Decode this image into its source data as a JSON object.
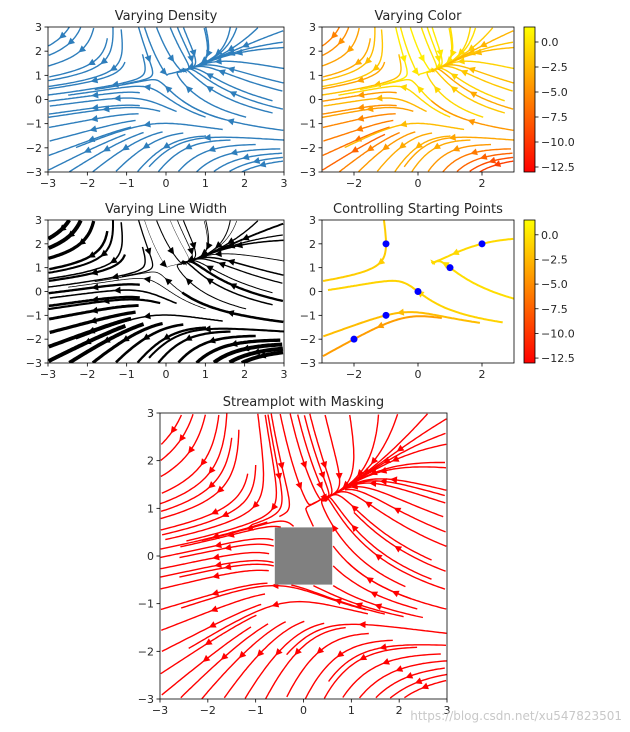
{
  "watermark": "https://blog.csdn.net/xu547823501",
  "figure": {
    "background": "#ffffff"
  },
  "chart_data": [
    {
      "type": "streamplot",
      "title": "Varying Density",
      "x_ticks": [
        "−3",
        "−2",
        "−1",
        "0",
        "1",
        "2",
        "3"
      ],
      "y_ticks": [
        "3",
        "2",
        "1",
        "0",
        "−1",
        "−2",
        "−3"
      ],
      "xlim": [
        -3,
        3
      ],
      "ylim": [
        -3,
        3
      ],
      "color": "#2e7ebc",
      "density": [
        0.5,
        1
      ],
      "colorbar": null,
      "start_points": [],
      "mask": null
    },
    {
      "type": "streamplot",
      "title": "Varying Color",
      "x_ticks": [
        "−2",
        "0",
        "2"
      ],
      "y_ticks": [
        "3",
        "2",
        "1",
        "0",
        "−1",
        "−2",
        "−3"
      ],
      "xlim": [
        -3,
        3
      ],
      "ylim": [
        -3,
        3
      ],
      "colormap": "autumn",
      "colorbar": {
        "ticks": [
          "0.0",
          "−2.5",
          "−5.0",
          "−7.5",
          "−10.0",
          "−12.5"
        ],
        "range": [
          -13,
          1.5
        ]
      },
      "start_points": [],
      "mask": null
    },
    {
      "type": "streamplot",
      "title": "Varying Line Width",
      "x_ticks": [
        "−3",
        "−2",
        "−1",
        "0",
        "1",
        "2",
        "3"
      ],
      "y_ticks": [
        "3",
        "2",
        "1",
        "0",
        "−1",
        "−2",
        "−3"
      ],
      "xlim": [
        -3,
        3
      ],
      "ylim": [
        -3,
        3
      ],
      "color": "#000000",
      "linewidth_varies_with": "speed",
      "colorbar": null,
      "start_points": [],
      "mask": null
    },
    {
      "type": "streamplot",
      "title": "Controlling Starting Points",
      "x_ticks": [
        "−2",
        "0",
        "2"
      ],
      "y_ticks": [
        "3",
        "2",
        "1",
        "0",
        "−1",
        "−2",
        "−3"
      ],
      "xlim": [
        -3,
        3
      ],
      "ylim": [
        -3,
        3
      ],
      "colormap": "autumn",
      "colorbar": {
        "ticks": [
          "0.0",
          "−2.5",
          "−5.0",
          "−7.5",
          "−10.0",
          "−12.5"
        ],
        "range": [
          -13,
          1.5
        ]
      },
      "start_points": [
        [
          -2,
          -2
        ],
        [
          -1,
          -1
        ],
        [
          0,
          0
        ],
        [
          1,
          1
        ],
        [
          2,
          2
        ],
        [
          -1,
          2
        ]
      ],
      "start_point_color": "#0000ff",
      "mask": null
    },
    {
      "type": "streamplot",
      "title": "Streamplot with Masking",
      "x_ticks": [
        "−3",
        "−2",
        "−1",
        "0",
        "1",
        "2",
        "3"
      ],
      "y_ticks": [
        "3",
        "2",
        "1",
        "0",
        "−1",
        "−2",
        "−3"
      ],
      "xlim": [
        -3,
        3
      ],
      "ylim": [
        -3,
        3
      ],
      "color": "#ff0000",
      "colorbar": null,
      "start_points": [],
      "mask": {
        "x": [
          -0.6,
          0.6
        ],
        "y": [
          -0.6,
          0.6
        ],
        "color": "#808080"
      }
    }
  ]
}
